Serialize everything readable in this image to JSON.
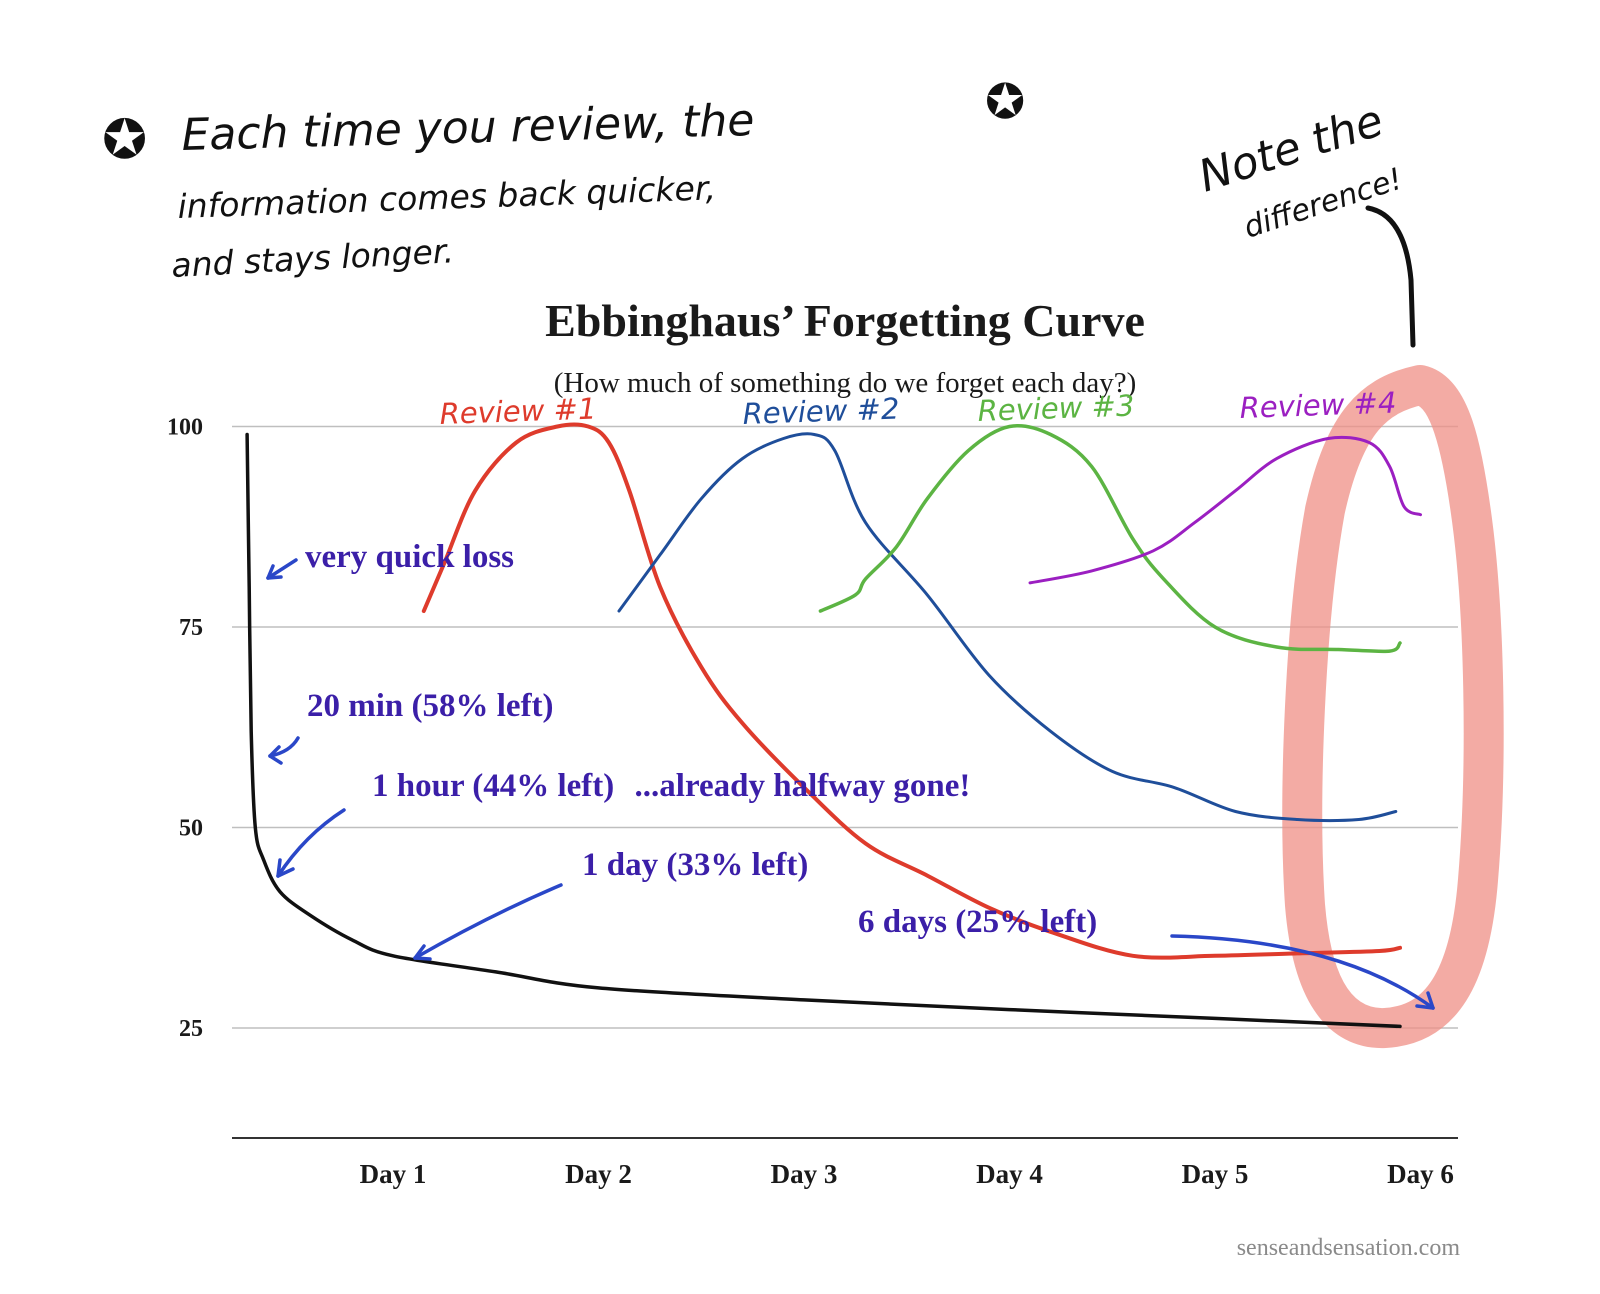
{
  "handwritten_note": {
    "line1": "Each time you review, the",
    "line2": "information comes back quicker,",
    "line3": "and stays longer.",
    "star_icon": "star-icon"
  },
  "side_note": {
    "line1": "Note the",
    "line2": "difference!"
  },
  "annotations": {
    "very_quick_loss": "very quick loss",
    "twenty_min": "20 min (58% left)",
    "one_hour": "1 hour (44% left)",
    "one_hour_extra": "...already halfway gone!",
    "one_day": "1 day (33% left)",
    "six_days": "6 days (25% left)"
  },
  "credit": "senseandsensation.com",
  "colors": {
    "forgetting": "#111111",
    "review1": "#de3b2c",
    "review2": "#1f4e9a",
    "review3": "#5cb443",
    "review4": "#9b1fc1",
    "highlight": "#ef8f86",
    "annotation": "#3b1fa8",
    "arrow": "#2a47c8",
    "gridline": "#bfbfbf"
  },
  "chart_data": {
    "type": "line",
    "title": "Ebbinghaus’ Forgetting Curve",
    "subtitle": "(How much of something do we forget each day?)",
    "xlabel": "",
    "ylabel": "",
    "xlim": [
      0.25,
      6.2
    ],
    "ylim": [
      12,
      100
    ],
    "categories": [
      "Day 1",
      "Day 2",
      "Day 3",
      "Day 4",
      "Day 5",
      "Day 6"
    ],
    "x_ticks": [
      1,
      2,
      3,
      4,
      5,
      6
    ],
    "yticks": [
      100,
      75,
      50,
      25
    ],
    "series": [
      {
        "name": "Forgetting curve",
        "color_key": "forgetting",
        "x": [
          0.29,
          0.3,
          0.31,
          0.33,
          0.37,
          0.45,
          0.6,
          0.8,
          1.0,
          1.5,
          2.0,
          3.0,
          4.0,
          5.0,
          5.9
        ],
        "y": [
          99,
          80,
          62,
          50,
          46,
          42,
          39,
          36,
          34,
          32,
          30,
          28.5,
          27.3,
          26.2,
          25.2
        ]
      },
      {
        "name": "Review #1",
        "color_key": "review1",
        "x": [
          1.15,
          1.25,
          1.4,
          1.6,
          1.8,
          1.95,
          2.05,
          2.15,
          2.3,
          2.5,
          2.7,
          3.0,
          3.3,
          3.6,
          3.9,
          4.2,
          4.6,
          5.0,
          5.4,
          5.8,
          5.9
        ],
        "y": [
          77,
          83,
          92,
          98,
          100,
          100,
          98,
          92,
          80,
          70,
          63,
          55,
          48,
          44,
          40,
          37,
          34,
          34,
          34.3,
          34.6,
          35
        ]
      },
      {
        "name": "Review #2",
        "color_key": "review2",
        "x": [
          2.1,
          2.3,
          2.5,
          2.7,
          2.9,
          3.05,
          3.15,
          3.3,
          3.6,
          3.9,
          4.2,
          4.5,
          4.8,
          5.1,
          5.4,
          5.7,
          5.88
        ],
        "y": [
          77,
          84,
          91,
          96,
          98.5,
          99,
          97,
          88,
          79,
          69,
          62,
          57,
          55,
          52,
          51,
          51,
          52
        ]
      },
      {
        "name": "Review #3",
        "color_key": "review3",
        "x": [
          3.08,
          3.25,
          3.3,
          3.45,
          3.6,
          3.8,
          4.0,
          4.2,
          4.4,
          4.6,
          4.75,
          5.0,
          5.3,
          5.6,
          5.85,
          5.9
        ],
        "y": [
          77,
          79,
          81,
          85,
          91,
          97,
          100,
          99,
          95,
          86,
          81,
          75,
          72.5,
          72.2,
          72,
          73
        ]
      },
      {
        "name": "Review #4",
        "color_key": "review4",
        "x": [
          4.1,
          4.4,
          4.7,
          4.9,
          5.1,
          5.3,
          5.55,
          5.75,
          5.85,
          5.92,
          6.0
        ],
        "y": [
          80.5,
          82,
          84.5,
          88,
          92,
          96,
          98.5,
          98,
          95,
          90,
          89
        ]
      }
    ],
    "review_labels": [
      "Review #1",
      "Review #2",
      "Review #3",
      "Review #4"
    ]
  }
}
